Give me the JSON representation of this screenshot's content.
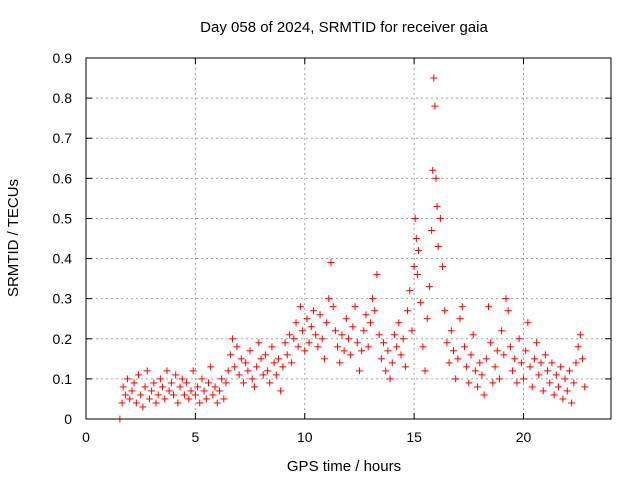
{
  "chart_data": {
    "type": "scatter",
    "title": "Day 058 of 2024, SRMTID for receiver gaia",
    "xlabel": "GPS time / hours",
    "ylabel": "SRMTID / TECUs",
    "xlim": [
      0,
      24
    ],
    "ylim": [
      0,
      0.9
    ],
    "xticks": [
      0,
      5,
      10,
      15,
      20
    ],
    "yticks": [
      0,
      0.1,
      0.2,
      0.3,
      0.4,
      0.5,
      0.6,
      0.7,
      0.8,
      0.9
    ],
    "xtick_labels": [
      "0",
      "5",
      "10",
      "15",
      "20"
    ],
    "ytick_labels": [
      "0",
      "0.1",
      "0.2",
      "0.3",
      "0.4",
      "0.5",
      "0.6",
      "0.7",
      "0.8",
      "0.9"
    ],
    "grid": true,
    "marker": "+",
    "color": "#ff0000",
    "series": [
      {
        "name": "SRMTID",
        "points": [
          [
            1.55,
            0.0
          ],
          [
            1.65,
            0.04
          ],
          [
            1.7,
            0.08
          ],
          [
            1.8,
            0.06
          ],
          [
            1.9,
            0.1
          ],
          [
            2.0,
            0.05
          ],
          [
            2.1,
            0.07
          ],
          [
            2.2,
            0.09
          ],
          [
            2.3,
            0.04
          ],
          [
            2.4,
            0.11
          ],
          [
            2.5,
            0.06
          ],
          [
            2.6,
            0.03
          ],
          [
            2.7,
            0.08
          ],
          [
            2.8,
            0.12
          ],
          [
            2.9,
            0.05
          ],
          [
            3.0,
            0.07
          ],
          [
            3.1,
            0.09
          ],
          [
            3.2,
            0.04
          ],
          [
            3.3,
            0.06
          ],
          [
            3.4,
            0.1
          ],
          [
            3.5,
            0.08
          ],
          [
            3.6,
            0.05
          ],
          [
            3.7,
            0.12
          ],
          [
            3.8,
            0.07
          ],
          [
            3.9,
            0.09
          ],
          [
            4.0,
            0.06
          ],
          [
            4.1,
            0.11
          ],
          [
            4.2,
            0.04
          ],
          [
            4.3,
            0.08
          ],
          [
            4.4,
            0.1
          ],
          [
            4.5,
            0.06
          ],
          [
            4.6,
            0.09
          ],
          [
            4.7,
            0.05
          ],
          [
            4.8,
            0.07
          ],
          [
            4.9,
            0.12
          ],
          [
            5.0,
            0.06
          ],
          [
            5.1,
            0.08
          ],
          [
            5.2,
            0.04
          ],
          [
            5.3,
            0.1
          ],
          [
            5.4,
            0.07
          ],
          [
            5.5,
            0.05
          ],
          [
            5.6,
            0.09
          ],
          [
            5.7,
            0.13
          ],
          [
            5.8,
            0.06
          ],
          [
            5.9,
            0.08
          ],
          [
            6.0,
            0.04
          ],
          [
            6.1,
            0.07
          ],
          [
            6.2,
            0.1
          ],
          [
            6.3,
            0.05
          ],
          [
            6.4,
            0.09
          ],
          [
            6.5,
            0.12
          ],
          [
            6.6,
            0.16
          ],
          [
            6.7,
            0.2
          ],
          [
            6.8,
            0.13
          ],
          [
            6.9,
            0.18
          ],
          [
            7.0,
            0.11
          ],
          [
            7.1,
            0.15
          ],
          [
            7.2,
            0.09
          ],
          [
            7.3,
            0.14
          ],
          [
            7.4,
            0.12
          ],
          [
            7.5,
            0.17
          ],
          [
            7.6,
            0.1
          ],
          [
            7.7,
            0.08
          ],
          [
            7.8,
            0.13
          ],
          [
            7.9,
            0.19
          ],
          [
            8.0,
            0.15
          ],
          [
            8.1,
            0.11
          ],
          [
            8.2,
            0.16
          ],
          [
            8.3,
            0.12
          ],
          [
            8.4,
            0.09
          ],
          [
            8.5,
            0.18
          ],
          [
            8.6,
            0.14
          ],
          [
            8.7,
            0.11
          ],
          [
            8.8,
            0.15
          ],
          [
            8.9,
            0.07
          ],
          [
            9.0,
            0.13
          ],
          [
            9.1,
            0.19
          ],
          [
            9.2,
            0.16
          ],
          [
            9.3,
            0.21
          ],
          [
            9.4,
            0.14
          ],
          [
            9.5,
            0.2
          ],
          [
            9.6,
            0.24
          ],
          [
            9.7,
            0.18
          ],
          [
            9.8,
            0.28
          ],
          [
            9.9,
            0.22
          ],
          [
            10.0,
            0.17
          ],
          [
            10.1,
            0.25
          ],
          [
            10.2,
            0.19
          ],
          [
            10.3,
            0.23
          ],
          [
            10.4,
            0.27
          ],
          [
            10.5,
            0.21
          ],
          [
            10.6,
            0.18
          ],
          [
            10.7,
            0.26
          ],
          [
            10.8,
            0.2
          ],
          [
            10.9,
            0.15
          ],
          [
            11.0,
            0.24
          ],
          [
            11.1,
            0.3
          ],
          [
            11.2,
            0.39
          ],
          [
            11.3,
            0.28
          ],
          [
            11.4,
            0.22
          ],
          [
            11.5,
            0.18
          ],
          [
            11.6,
            0.14
          ],
          [
            11.7,
            0.21
          ],
          [
            11.8,
            0.17
          ],
          [
            11.9,
            0.25
          ],
          [
            12.0,
            0.2
          ],
          [
            12.1,
            0.16
          ],
          [
            12.2,
            0.23
          ],
          [
            12.3,
            0.28
          ],
          [
            12.4,
            0.19
          ],
          [
            12.5,
            0.12
          ],
          [
            12.6,
            0.17
          ],
          [
            12.7,
            0.22
          ],
          [
            12.8,
            0.26
          ],
          [
            12.9,
            0.18
          ],
          [
            13.0,
            0.24
          ],
          [
            13.1,
            0.3
          ],
          [
            13.2,
            0.27
          ],
          [
            13.3,
            0.36
          ],
          [
            13.4,
            0.21
          ],
          [
            13.5,
            0.15
          ],
          [
            13.6,
            0.19
          ],
          [
            13.7,
            0.12
          ],
          [
            13.8,
            0.17
          ],
          [
            13.9,
            0.1
          ],
          [
            14.0,
            0.14
          ],
          [
            14.1,
            0.21
          ],
          [
            14.2,
            0.18
          ],
          [
            14.3,
            0.24
          ],
          [
            14.4,
            0.16
          ],
          [
            14.5,
            0.2
          ],
          [
            14.6,
            0.13
          ],
          [
            14.7,
            0.27
          ],
          [
            14.8,
            0.32
          ],
          [
            14.9,
            0.22
          ],
          [
            15.0,
            0.38
          ],
          [
            15.05,
            0.5
          ],
          [
            15.1,
            0.45
          ],
          [
            15.15,
            0.36
          ],
          [
            15.2,
            0.42
          ],
          [
            15.3,
            0.29
          ],
          [
            15.4,
            0.18
          ],
          [
            15.5,
            0.12
          ],
          [
            15.6,
            0.25
          ],
          [
            15.7,
            0.33
          ],
          [
            15.8,
            0.47
          ],
          [
            15.85,
            0.62
          ],
          [
            15.9,
            0.85
          ],
          [
            15.95,
            0.78
          ],
          [
            16.0,
            0.6
          ],
          [
            16.05,
            0.53
          ],
          [
            16.1,
            0.43
          ],
          [
            16.2,
            0.5
          ],
          [
            16.3,
            0.38
          ],
          [
            16.4,
            0.27
          ],
          [
            16.5,
            0.19
          ],
          [
            16.6,
            0.14
          ],
          [
            16.7,
            0.22
          ],
          [
            16.8,
            0.17
          ],
          [
            16.9,
            0.1
          ],
          [
            17.0,
            0.15
          ],
          [
            17.1,
            0.25
          ],
          [
            17.2,
            0.28
          ],
          [
            17.3,
            0.18
          ],
          [
            17.4,
            0.13
          ],
          [
            17.5,
            0.09
          ],
          [
            17.6,
            0.16
          ],
          [
            17.7,
            0.21
          ],
          [
            17.8,
            0.12
          ],
          [
            17.9,
            0.08
          ],
          [
            18.0,
            0.14
          ],
          [
            18.1,
            0.11
          ],
          [
            18.2,
            0.06
          ],
          [
            18.3,
            0.15
          ],
          [
            18.4,
            0.28
          ],
          [
            18.5,
            0.19
          ],
          [
            18.6,
            0.09
          ],
          [
            18.7,
            0.13
          ],
          [
            18.8,
            0.17
          ],
          [
            18.9,
            0.1
          ],
          [
            19.0,
            0.22
          ],
          [
            19.1,
            0.16
          ],
          [
            19.2,
            0.3
          ],
          [
            19.3,
            0.27
          ],
          [
            19.4,
            0.18
          ],
          [
            19.5,
            0.12
          ],
          [
            19.6,
            0.15
          ],
          [
            19.7,
            0.09
          ],
          [
            19.8,
            0.2
          ],
          [
            19.9,
            0.14
          ],
          [
            20.0,
            0.1
          ],
          [
            20.1,
            0.17
          ],
          [
            20.2,
            0.24
          ],
          [
            20.3,
            0.13
          ],
          [
            20.4,
            0.08
          ],
          [
            20.5,
            0.15
          ],
          [
            20.6,
            0.19
          ],
          [
            20.7,
            0.11
          ],
          [
            20.8,
            0.14
          ],
          [
            20.9,
            0.07
          ],
          [
            21.0,
            0.16
          ],
          [
            21.1,
            0.12
          ],
          [
            21.2,
            0.09
          ],
          [
            21.3,
            0.14
          ],
          [
            21.4,
            0.06
          ],
          [
            21.5,
            0.11
          ],
          [
            21.6,
            0.08
          ],
          [
            21.7,
            0.13
          ],
          [
            21.8,
            0.05
          ],
          [
            21.9,
            0.1
          ],
          [
            22.0,
            0.07
          ],
          [
            22.1,
            0.12
          ],
          [
            22.2,
            0.04
          ],
          [
            22.3,
            0.09
          ],
          [
            22.4,
            0.14
          ],
          [
            22.5,
            0.18
          ],
          [
            22.6,
            0.21
          ],
          [
            22.7,
            0.15
          ],
          [
            22.8,
            0.08
          ]
        ]
      }
    ]
  }
}
